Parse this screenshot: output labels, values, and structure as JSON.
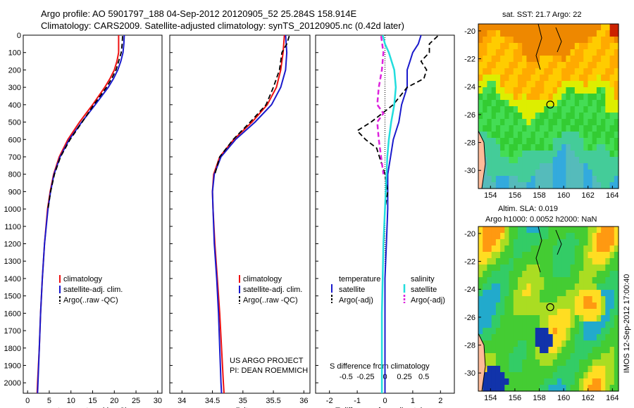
{
  "header": {
    "title_line1": "Argo profile: AO 5901797_188 04-Sep-2012 20120905_52 25.284S 158.914E",
    "title_line2": "Climatology: CARS2009. Satellite-adjusted climatology: synTS_20120905.nc (0.42d later)"
  },
  "colors": {
    "climatology": "#ee1111",
    "satellite": "#1a1acc",
    "argo": "#000000",
    "sal_satellite": "#22dddd",
    "sal_argo": "#dd22dd"
  },
  "chart_data": [
    {
      "type": "line",
      "panel": "temperature",
      "xlabel": "temperature (deg C)",
      "ylabel": "",
      "xlim": [
        -1,
        31
      ],
      "ylim": [
        2060,
        0
      ],
      "xticks": [
        0,
        5,
        10,
        15,
        20,
        25,
        30
      ],
      "yticks": [
        0,
        100,
        200,
        300,
        400,
        500,
        600,
        700,
        800,
        900,
        1000,
        1100,
        1200,
        1300,
        1400,
        1500,
        1600,
        1700,
        1800,
        1900,
        2000
      ],
      "legend": [
        "climatology",
        "satellite-adj. clim.",
        "Argo(..raw -QC)"
      ],
      "series": [
        {
          "name": "climatology",
          "depth": [
            0,
            50,
            100,
            150,
            200,
            250,
            300,
            400,
            500,
            600,
            700,
            800,
            900,
            1000,
            1200,
            1400,
            1600,
            1800,
            2000,
            2060
          ],
          "values": [
            21.0,
            21.0,
            21.0,
            20.6,
            20.0,
            19.0,
            17.8,
            15.0,
            12.0,
            9.3,
            7.3,
            6.0,
            5.2,
            4.6,
            3.9,
            3.4,
            3.0,
            2.7,
            2.3,
            2.2
          ]
        },
        {
          "name": "satellite-adj. clim.",
          "depth": [
            0,
            50,
            100,
            150,
            200,
            250,
            300,
            400,
            500,
            600,
            700,
            800,
            900,
            1000,
            1200,
            1400,
            1600,
            1800,
            2000,
            2060
          ],
          "values": [
            22.3,
            22.2,
            22.0,
            21.5,
            20.8,
            19.8,
            18.6,
            15.6,
            12.5,
            9.6,
            7.5,
            6.1,
            5.3,
            4.7,
            3.9,
            3.4,
            3.0,
            2.7,
            2.4,
            2.3
          ]
        },
        {
          "name": "Argo(..raw -QC)",
          "depth": [
            5,
            50,
            100,
            150,
            200,
            250,
            300,
            400,
            500,
            600,
            700,
            800,
            900,
            1000
          ],
          "values": [
            21.9,
            21.8,
            21.6,
            21.0,
            20.4,
            19.4,
            18.2,
            15.3,
            12.6,
            9.8,
            7.6,
            6.2,
            5.3,
            4.7
          ]
        }
      ]
    },
    {
      "type": "line",
      "panel": "salinity",
      "xlabel": "salinity",
      "ylabel": "",
      "xlim": [
        33.8,
        36.1
      ],
      "ylim": [
        2060,
        0
      ],
      "xticks": [
        34,
        34.5,
        35,
        35.5,
        36
      ],
      "legend": [
        "climatology",
        "satellite-adj. clim.",
        "Argo(..raw -QC)"
      ],
      "series": [
        {
          "name": "climatology",
          "depth": [
            0,
            100,
            200,
            300,
            400,
            500,
            600,
            700,
            800,
            900,
            1000,
            1200,
            1400,
            1600,
            1800,
            2000,
            2060
          ],
          "values": [
            35.68,
            35.66,
            35.62,
            35.55,
            35.4,
            35.15,
            34.85,
            34.62,
            34.52,
            34.5,
            34.51,
            34.54,
            34.58,
            34.62,
            34.65,
            34.68,
            34.69
          ]
        },
        {
          "name": "satellite-adj. clim.",
          "depth": [
            0,
            100,
            200,
            300,
            400,
            500,
            600,
            700,
            800,
            900,
            1000,
            1200,
            1400,
            1600,
            1800,
            2000,
            2060
          ],
          "values": [
            35.7,
            35.72,
            35.7,
            35.62,
            35.47,
            35.2,
            34.88,
            34.64,
            34.53,
            34.5,
            34.51,
            34.53,
            34.57,
            34.6,
            34.62,
            34.64,
            34.65
          ]
        },
        {
          "name": "Argo(..raw -QC)",
          "depth": [
            5,
            50,
            100,
            150,
            200,
            300,
            400,
            500,
            600,
            700,
            800
          ],
          "values": [
            35.76,
            35.72,
            35.64,
            35.62,
            35.6,
            35.5,
            35.38,
            35.12,
            34.84,
            34.62,
            34.54
          ]
        }
      ]
    },
    {
      "type": "line",
      "panel": "difference",
      "xlabel": "T difference from climatology",
      "xlabel_top": "S difference from climatology",
      "ylim": [
        2060,
        0
      ],
      "xlim_T": [
        -2.5,
        2.5
      ],
      "xticks_T": [
        -2,
        -1,
        0,
        1,
        2
      ],
      "xticks_S": [
        "-0.5",
        "-0.25",
        "0",
        "0.25",
        "0.5"
      ],
      "legend_temperature": [
        "temperature",
        "satellite",
        "Argo(-adj)"
      ],
      "legend_salinity": [
        "salinity",
        "satellite",
        "Argo(-adj)"
      ],
      "series": [
        {
          "name": "satellite",
          "group": "temperature",
          "depth": [
            0,
            50,
            100,
            150,
            200,
            250,
            300,
            400,
            500,
            600,
            700,
            800,
            900,
            1000,
            1200,
            1400,
            1600,
            1800,
            2000,
            2060
          ],
          "values": [
            1.3,
            1.2,
            1.0,
            0.9,
            0.8,
            0.8,
            0.8,
            0.6,
            0.5,
            0.3,
            0.2,
            0.1,
            0.1,
            0.1,
            0.05,
            0.0,
            0.0,
            0.0,
            0.0,
            0.0
          ]
        },
        {
          "name": "Argo(-adj)",
          "group": "temperature",
          "depth": [
            5,
            50,
            100,
            150,
            200,
            250,
            300,
            400,
            450,
            500,
            550,
            600,
            650,
            700,
            800,
            900,
            1000
          ],
          "values": [
            1.9,
            1.6,
            1.6,
            1.3,
            1.5,
            1.4,
            0.8,
            0.3,
            -0.1,
            -0.5,
            -1.0,
            -0.7,
            -0.3,
            -0.2,
            0.0,
            0.1,
            0.0
          ]
        },
        {
          "name": "satellite",
          "group": "salinity",
          "depth": [
            0,
            50,
            100,
            200,
            300,
            400,
            500,
            600,
            700,
            800,
            1000,
            1200,
            1400,
            1600,
            1800,
            2000,
            2060
          ],
          "values": [
            -0.03,
            0.0,
            0.05,
            0.12,
            0.14,
            0.12,
            0.08,
            0.05,
            0.03,
            0.02,
            0.0,
            -0.02,
            -0.03,
            -0.04,
            -0.04,
            -0.04,
            -0.04
          ]
        },
        {
          "name": "Argo(-adj)",
          "group": "salinity",
          "depth": [
            5,
            100,
            200,
            300,
            400,
            450,
            500,
            600,
            700,
            800
          ],
          "values": [
            -0.05,
            -0.02,
            -0.04,
            -0.08,
            -0.1,
            -0.02,
            -0.1,
            -0.08,
            -0.05,
            -0.02
          ]
        }
      ]
    },
    {
      "type": "heatmap",
      "panel": "sst_map",
      "title": "sat. SST: 21.7 Argo: 22",
      "xlim": [
        153,
        164.5
      ],
      "ylim": [
        -31.3,
        -19.5
      ],
      "xticks": [
        154,
        156,
        158,
        160,
        162,
        164
      ],
      "yticks": [
        -20,
        -22,
        -24,
        -26,
        -28,
        -30
      ],
      "marker": {
        "lon": 158.9,
        "lat": -25.28
      }
    },
    {
      "type": "heatmap",
      "panel": "sla_map",
      "title_line1": "Altim. SLA: 0.019",
      "title_line2": "Argo h1000: 0.0052 h2000: NaN",
      "xlim": [
        153,
        164.5
      ],
      "ylim": [
        -31.3,
        -19.5
      ],
      "xticks": [
        154,
        156,
        158,
        160,
        162,
        164
      ],
      "yticks": [
        -20,
        -22,
        -24,
        -26,
        -28,
        -30
      ],
      "marker": {
        "lon": 158.9,
        "lat": -25.28
      }
    }
  ],
  "footer": {
    "project_line1": "US ARGO PROJECT",
    "project_line2": "PI: DEAN ROEMMICH",
    "stamp": "IMOS 12-Sep-2012 17:00:40"
  }
}
